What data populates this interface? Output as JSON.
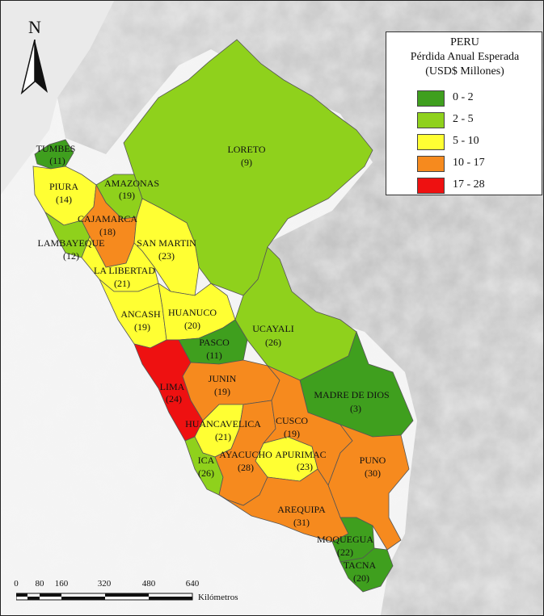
{
  "legend": {
    "title_lines": [
      "PERU",
      "Pérdida Anual Esperada",
      "(USD$ Millones)"
    ],
    "classes": [
      {
        "label": "0 - 2",
        "color": "#3f9f1e"
      },
      {
        "label": "2 - 5",
        "color": "#8fd11c"
      },
      {
        "label": "5 - 10",
        "color": "#ffff33"
      },
      {
        "label": "10 - 17",
        "color": "#f68a1e"
      },
      {
        "label": "17 - 28",
        "color": "#ee1111"
      }
    ]
  },
  "north_arrow": {
    "letter": "N"
  },
  "scale_bar": {
    "ticks": [
      "0",
      "80",
      "160",
      "320",
      "480",
      "640"
    ],
    "unit": "Kilómetros"
  },
  "regions": [
    {
      "name": "TUMBES",
      "value": "(11)"
    },
    {
      "name": "PIURA",
      "value": "(14)"
    },
    {
      "name": "AMAZONAS",
      "value": "(19)"
    },
    {
      "name": "LORETO",
      "value": "(9)"
    },
    {
      "name": "CAJAMARCA",
      "value": "(18)"
    },
    {
      "name": "LAMBAYEQUE",
      "value": "(12)"
    },
    {
      "name": "SAN MARTIN",
      "value": "(23)"
    },
    {
      "name": "LA LIBERTAD",
      "value": "(21)"
    },
    {
      "name": "ANCASH",
      "value": "(19)"
    },
    {
      "name": "HUANUCO",
      "value": "(20)"
    },
    {
      "name": "UCAYALI",
      "value": "(26)"
    },
    {
      "name": "PASCO",
      "value": "(11)"
    },
    {
      "name": "LIMA",
      "value": "(24)"
    },
    {
      "name": "JUNIN",
      "value": "(19)"
    },
    {
      "name": "MADRE DE DIOS",
      "value": "(3)"
    },
    {
      "name": "HUANCAVELICA",
      "value": "(21)"
    },
    {
      "name": "CUSCO",
      "value": "(19)"
    },
    {
      "name": "ICA",
      "value": "(26)"
    },
    {
      "name": "AYACUCHO",
      "value": "(28)"
    },
    {
      "name": "APURIMAC",
      "value": "(23)"
    },
    {
      "name": "PUNO",
      "value": "(30)"
    },
    {
      "name": "AREQUIPA",
      "value": "(31)"
    },
    {
      "name": "MOQUEGUA",
      "value": "(22)"
    },
    {
      "name": "TACNA",
      "value": "(20)"
    }
  ]
}
